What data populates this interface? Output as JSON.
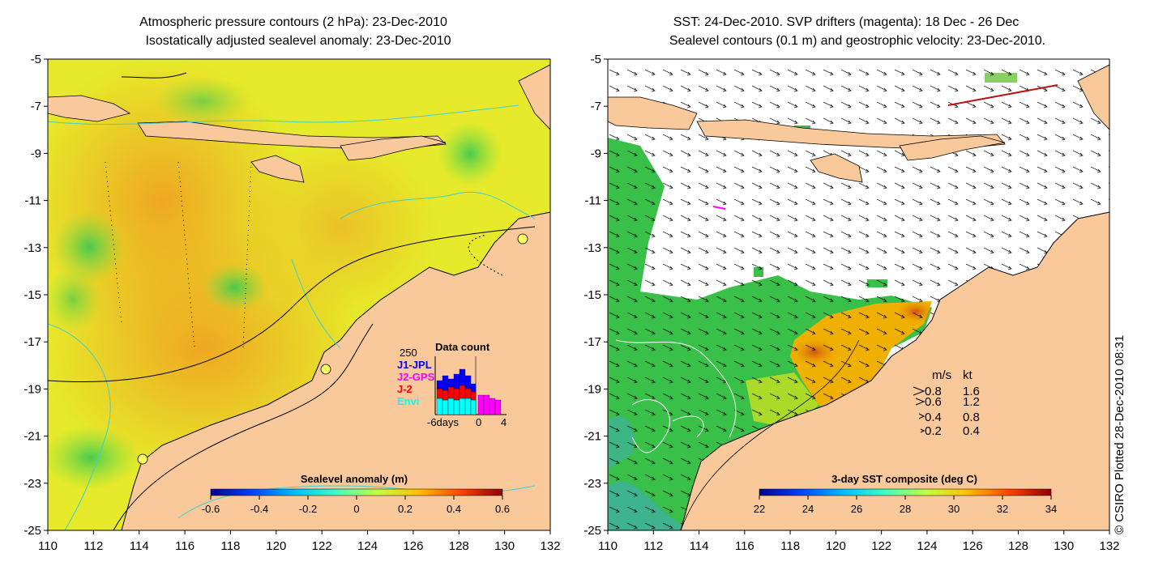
{
  "left_panel": {
    "title_line1": "Atmospheric pressure contours (2 hPa): 23-Dec-2010",
    "title_line2": "Isostatically adjusted sealevel anomaly: 23-Dec-2010",
    "colorbar": {
      "label": "Sealevel anomaly (m)",
      "ticks": [
        "-0.6",
        "-0.4",
        "-0.2",
        "0",
        "0.2",
        "0.4",
        "0.6"
      ],
      "colors": [
        "#00008f",
        "#0040ff",
        "#00c0ff",
        "#40ffbf",
        "#c0ff40",
        "#ffc000",
        "#ff4000",
        "#8f0000"
      ]
    },
    "inset": {
      "title": "Data count",
      "max_label": "250",
      "missions": [
        {
          "name": "J1-JPL",
          "color": "#0000ff"
        },
        {
          "name": "J2-GPS",
          "color": "#ff00ff"
        },
        {
          "name": "J-2",
          "color": "#ff0000"
        },
        {
          "name": "Envi",
          "color": "#00ffff"
        }
      ],
      "x_labels": [
        "-6days",
        "0",
        "4"
      ]
    }
  },
  "right_panel": {
    "title_line1": "SST: 24-Dec-2010. SVP drifters (magenta): 18 Dec - 26 Dec",
    "title_line2": "Sealevel contours (0.1 m) and geostrophic velocity: 23-Dec-2010.",
    "colorbar": {
      "label": "3-day SST composite (deg C)",
      "ticks": [
        "22",
        "24",
        "26",
        "28",
        "30",
        "32",
        "34"
      ],
      "colors": [
        "#00008f",
        "#0040ff",
        "#00c0ff",
        "#40ffbf",
        "#c0ff40",
        "#ffc000",
        "#ff4000",
        "#8f0000"
      ]
    },
    "speed_legend": {
      "header_ms": "m/s",
      "header_kt": "kt",
      "rows": [
        {
          "ms": "0.8",
          "kt": "1.6"
        },
        {
          "ms": "0.6",
          "kt": "1.2"
        },
        {
          "ms": "0.4",
          "kt": "0.8"
        },
        {
          "ms": "0.2",
          "kt": "0.4"
        }
      ]
    }
  },
  "axes": {
    "x_ticks": [
      "110",
      "112",
      "114",
      "116",
      "118",
      "120",
      "122",
      "124",
      "126",
      "128",
      "130",
      "132"
    ],
    "y_ticks": [
      "-5",
      "-7",
      "-9",
      "-11",
      "-13",
      "-15",
      "-17",
      "-19",
      "-21",
      "-23",
      "-25"
    ]
  },
  "credit": "© CSIRO Plotted 28-Dec-2010 08:31",
  "colors": {
    "land": "#f9c89b",
    "sea_anomaly_base": "#e8f020",
    "sst_cool": "#30c040",
    "sst_warm": "#f0a000",
    "contour": "#40d0d0"
  }
}
